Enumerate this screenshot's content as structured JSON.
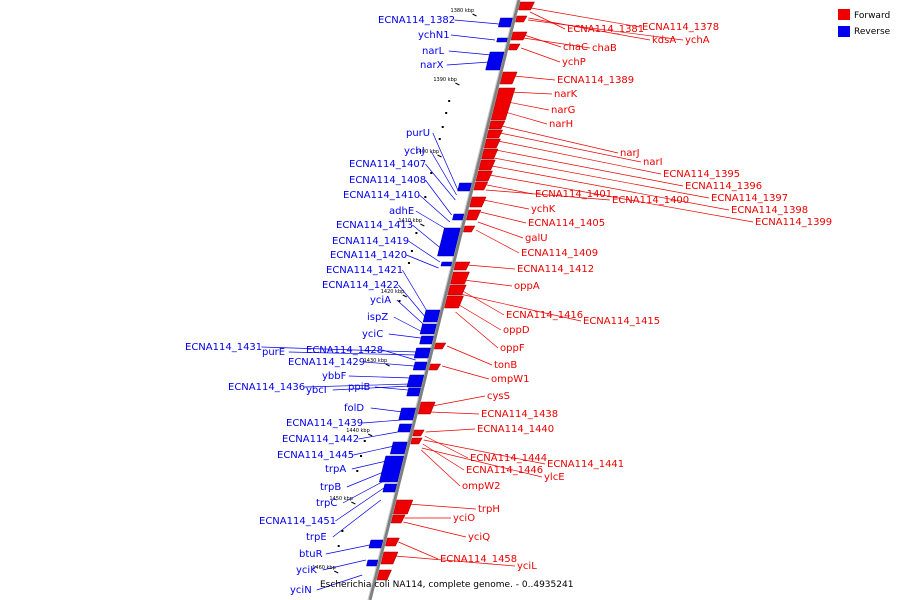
{
  "caption": "Escherichia coli NA114, complete genome. - 0..4935241",
  "colors": {
    "forward": "#ee0000",
    "reverse": "#0000ee",
    "axis": "#808080"
  },
  "legend": [
    {
      "label": "Forward",
      "color": "#ee0000"
    },
    {
      "label": "Reverse",
      "color": "#0000ee"
    }
  ],
  "ticks": [
    "1380 kbp",
    "1390 kbp",
    "1400 kbp",
    "1410 kbp",
    "1420 kbp",
    "1430 kbp",
    "1440 kbp",
    "1450 kbp",
    "1460 kbp"
  ],
  "reverse_genes": [
    "ECNA114_1382",
    "ychN1",
    "narL",
    "narX",
    "purU",
    "ychJ",
    "ECNA114_1407",
    "ECNA114_1408",
    "ECNA114_1410",
    "adhE",
    "ECNA114_1413",
    "ECNA114_1419",
    "ECNA114_1420",
    "ECNA114_1421",
    "ECNA114_1422",
    "yciA",
    "ispZ",
    "yciC",
    "ECNA114_1431",
    "purE",
    "ECNA114_1428",
    "ECNA114_1429",
    "ybbF",
    "ECNA114_1436",
    "ybcI",
    "ppiB",
    "folD",
    "ECNA114_1439",
    "ECNA114_1442",
    "ECNA114_1445",
    "trpA",
    "trpB",
    "trpC",
    "ECNA114_1451",
    "trpE",
    "btuR",
    "yciK",
    "yciN"
  ],
  "forward_genes": [
    "ECNA114_1381",
    "ECNA114_1378",
    "kdsA",
    "ychA",
    "chaC",
    "chaB",
    "ychP",
    "ECNA114_1389",
    "narK",
    "narG",
    "narH",
    "narJ",
    "narI",
    "ECNA114_1395",
    "ECNA114_1396",
    "ECNA114_1397",
    "ECNA114_1398",
    "ECNA114_1399",
    "ECNA114_1401",
    "ECNA114_1400",
    "ychK",
    "ECNA114_1405",
    "galU",
    "ECNA114_1409",
    "ECNA114_1412",
    "oppA",
    "ECNA114_1416",
    "ECNA114_1415",
    "oppD",
    "oppF",
    "tonB",
    "ompW1",
    "cysS",
    "ECNA114_1438",
    "ECNA114_1440",
    "ECNA114_1444",
    "ECNA114_1441",
    "ECNA114_1446",
    "ylcE",
    "ompW2",
    "trpH",
    "yciO",
    "yciQ",
    "ECNA114_1458",
    "yciL"
  ]
}
